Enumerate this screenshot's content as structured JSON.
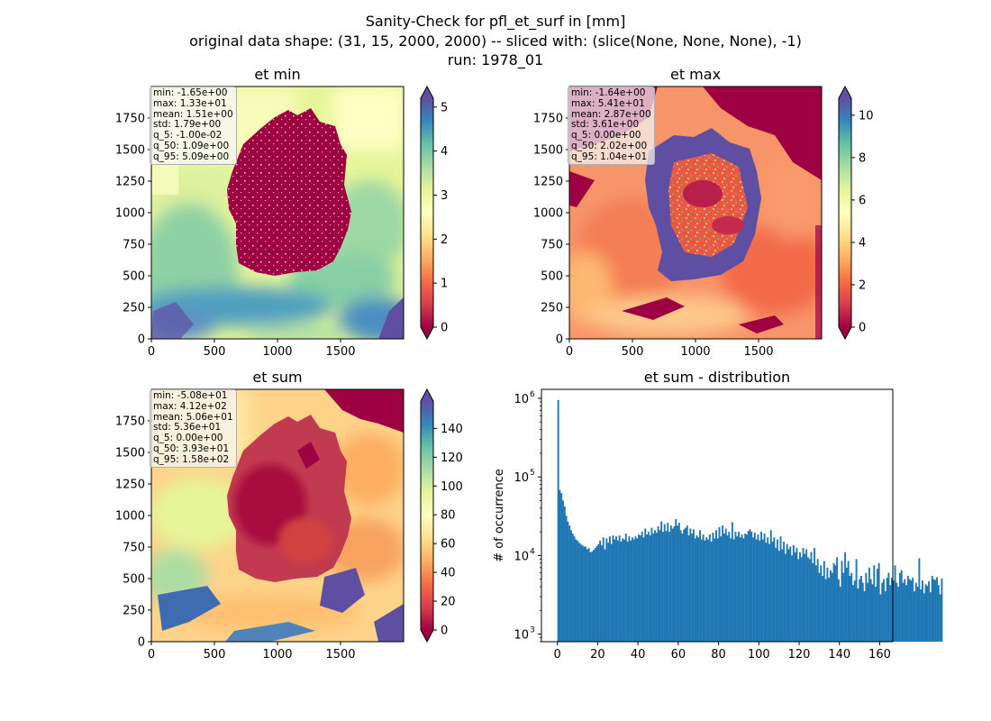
{
  "figure": {
    "title_line1": "Sanity-Check for pfl_et_surf in [mm]",
    "title_line2": "original data shape: (31, 15, 2000, 2000) -- sliced with: (slice(None, None, None), -1)",
    "title_line3": "run: 1978_01"
  },
  "chart_data": [
    {
      "type": "heatmap",
      "title": "et min",
      "xlim": [
        0,
        2000
      ],
      "ylim": [
        0,
        2000
      ],
      "x_ticks": [
        0,
        500,
        1000,
        1500
      ],
      "y_ticks": [
        0,
        250,
        500,
        750,
        1000,
        1250,
        1500,
        1750
      ],
      "colormap": "Spectral",
      "colorbar": {
        "min": 0,
        "max": 5.2,
        "ticks": [
          0,
          1,
          2,
          3,
          4,
          5
        ],
        "extend": "both"
      },
      "stats": [
        "min: -1.65e+00",
        "max: 1.33e+01",
        "mean: 1.51e+00",
        "std: 1.79e+00",
        "q_5: -1.00e-02",
        "q_50: 1.09e+00",
        "q_95: 5.09e+00"
      ]
    },
    {
      "type": "heatmap",
      "title": "et max",
      "xlim": [
        0,
        2000
      ],
      "ylim": [
        0,
        2000
      ],
      "x_ticks": [
        0,
        500,
        1000,
        1500
      ],
      "y_ticks": [
        0,
        250,
        500,
        750,
        1000,
        1250,
        1500,
        1750
      ],
      "colormap": "Spectral",
      "colorbar": {
        "min": 0,
        "max": 10.8,
        "ticks": [
          0,
          2,
          4,
          6,
          8,
          10
        ],
        "extend": "both"
      },
      "stats": [
        "min: -1.64e+00",
        "max: 5.41e+01",
        "mean: 2.87e+00",
        "std: 3.61e+00",
        "q_5: 0.00e+00",
        "q_50: 2.02e+00",
        "q_95: 1.04e+01"
      ]
    },
    {
      "type": "heatmap",
      "title": "et sum",
      "xlim": [
        0,
        2000
      ],
      "ylim": [
        0,
        2000
      ],
      "x_ticks": [
        0,
        500,
        1000,
        1500
      ],
      "y_ticks": [
        0,
        250,
        500,
        750,
        1000,
        1250,
        1500,
        1750
      ],
      "colormap": "Spectral",
      "colorbar": {
        "min": 0,
        "max": 159,
        "ticks": [
          0,
          20,
          40,
          60,
          80,
          100,
          120,
          140
        ],
        "extend": "both"
      },
      "stats": [
        "min: -5.08e+01",
        "max: 4.12e+02",
        "mean: 5.06e+01",
        "std: 5.36e+01",
        "q_5: 0.00e+00",
        "q_50: 3.93e+01",
        "q_95: 1.58e+02"
      ]
    },
    {
      "type": "bar",
      "title": "et sum - distribution",
      "ylabel": "# of occurrence",
      "xlabel": "",
      "yscale": "log",
      "xlim": [
        -7.9,
        166.5
      ],
      "ylim": [
        800,
        1300000
      ],
      "x_ticks": [
        0,
        20,
        40,
        60,
        80,
        100,
        120,
        140,
        160
      ],
      "y_tick_labels": [
        "10",
        "10",
        "10",
        "10"
      ],
      "y_tick_exponents": [
        "3",
        "4",
        "5",
        "6"
      ],
      "y_tick_values": [
        1000,
        10000,
        100000,
        1000000
      ],
      "bar_color": "#1f77b4",
      "bin_width": 0.8,
      "x_first": 0,
      "values": [
        950000,
        68000,
        62000,
        50000,
        42000,
        32000,
        27000,
        24000,
        21000,
        19000,
        17500,
        16000,
        15500,
        14500,
        14000,
        13500,
        13000,
        13000,
        12000,
        12500,
        11000,
        11200,
        11800,
        12500,
        13200,
        14000,
        15500,
        13500,
        17000,
        12000,
        16500,
        14500,
        17500,
        14000,
        18000,
        16000,
        17500,
        15500,
        18000,
        15000,
        16500,
        16000,
        19000,
        15000,
        17500,
        15500,
        17000,
        16000,
        17500,
        16500,
        18500,
        18000,
        20000,
        17000,
        22000,
        18500,
        20000,
        18000,
        22500,
        19000,
        21000,
        19500,
        23500,
        21000,
        27000,
        20000,
        25000,
        20500,
        26000,
        20000,
        24000,
        22000,
        23500,
        29000,
        24000,
        26000,
        21000,
        19000,
        21500,
        22500,
        24000,
        18000,
        22000,
        19000,
        21500,
        16500,
        18000,
        17000,
        21000,
        16000,
        18500,
        15500,
        17000,
        16000,
        18500,
        15000,
        19500,
        16500,
        21000,
        16500,
        23000,
        17500,
        24000,
        19000,
        22000,
        18000,
        20000,
        16500,
        26500,
        16000,
        20000,
        17500,
        20000,
        17000,
        18500,
        16500,
        19000,
        18500,
        20500,
        21500,
        20000,
        17000,
        19500,
        16000,
        18500,
        15500,
        20000,
        16000,
        19000,
        14500,
        17000,
        14000,
        21000,
        15000,
        17000,
        12500,
        16000,
        11500,
        17500,
        12000,
        15000,
        10500,
        14000,
        12000,
        13000,
        10000,
        13500,
        11000,
        12500,
        9000,
        11000,
        9500,
        12500,
        10500,
        12000,
        9500,
        9000,
        11000,
        8000,
        12500,
        7500,
        9000,
        6000,
        7500,
        5500,
        8500,
        5000,
        7000,
        5200,
        6500,
        6000,
        8000,
        7500,
        9500,
        5000,
        4000,
        8500,
        6000,
        11000,
        7000,
        8500,
        5500,
        6000,
        4200,
        4800,
        9000,
        3800,
        5000,
        5500,
        4500,
        3500,
        6000,
        4500,
        7000,
        5000,
        4300,
        7500,
        4000,
        6800,
        8000,
        3200,
        4500,
        5000,
        3500,
        5200,
        6000,
        4200,
        5200,
        4800,
        7500,
        4500,
        4000,
        6000,
        6500,
        4500,
        5000,
        4200,
        5500,
        5000,
        4800,
        5200,
        3500,
        4500,
        4000,
        9200,
        3700,
        4800,
        3300,
        4300,
        4100,
        4700,
        3400,
        5500,
        5000,
        4900,
        5300,
        4200,
        3200,
        5100
      ]
    }
  ]
}
